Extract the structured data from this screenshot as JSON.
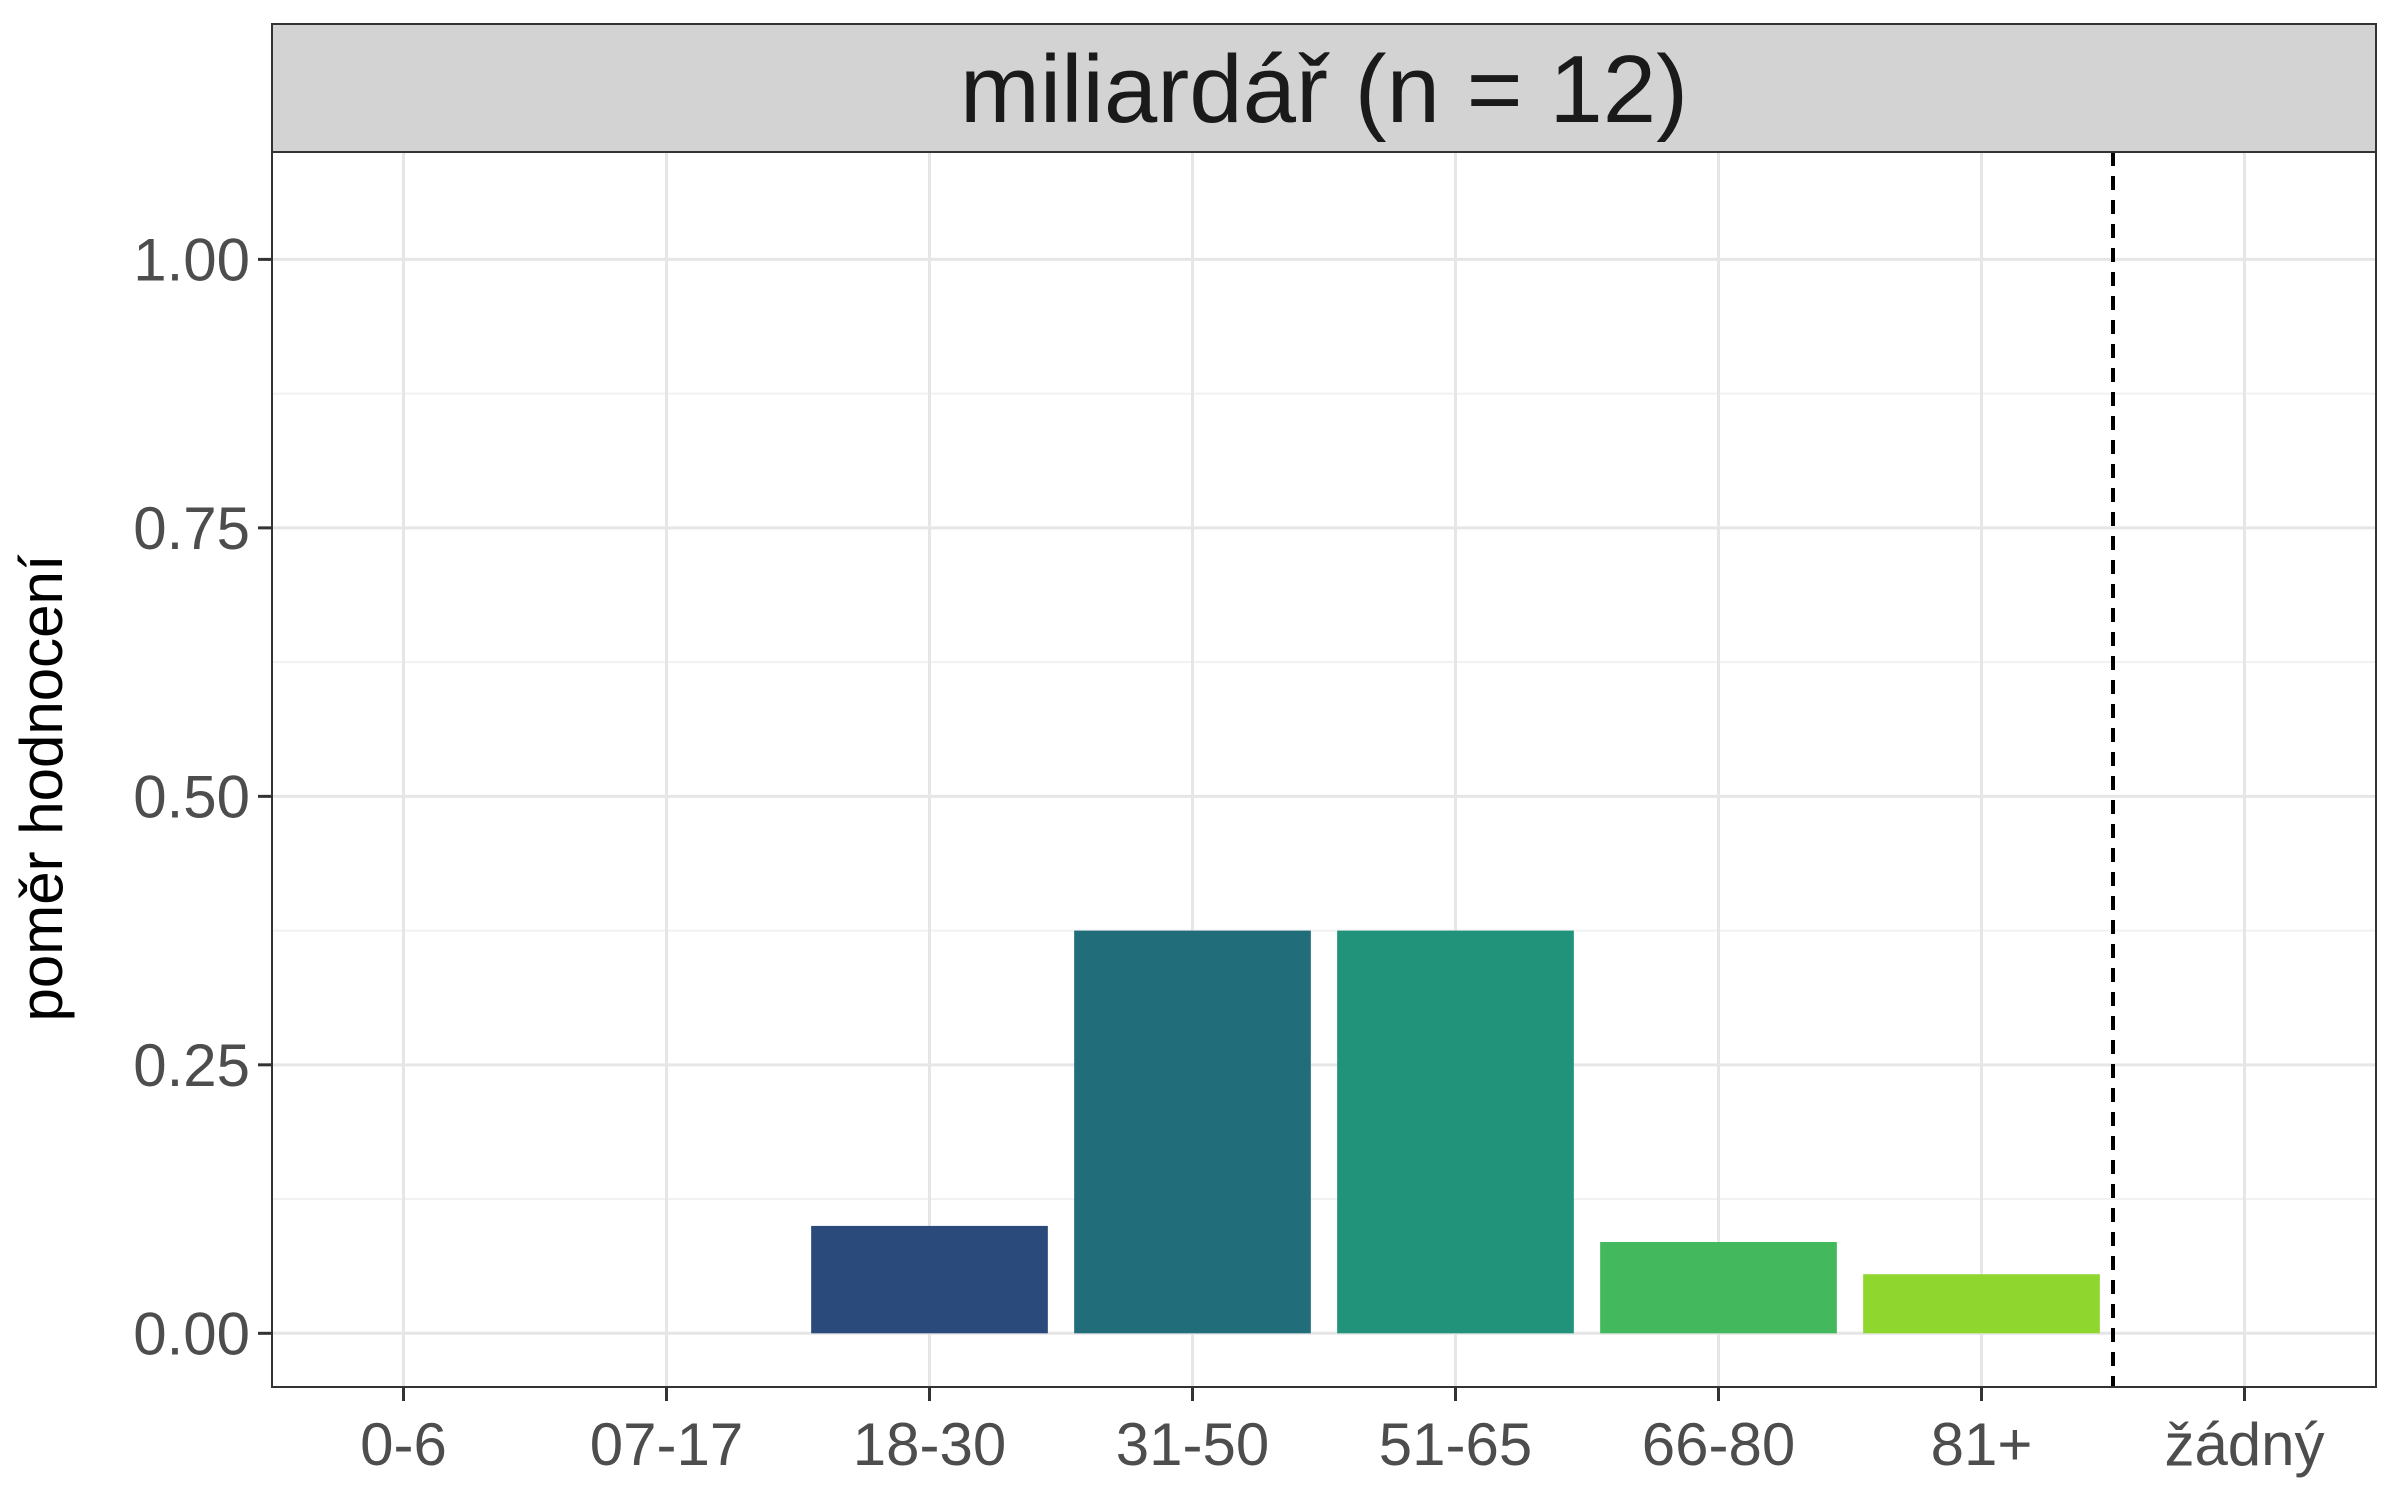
{
  "chart_data": {
    "type": "bar",
    "facet_title": "miliardář (n = 12)",
    "ylabel": "poměr hodnocení",
    "xlabel": "",
    "categories": [
      "0-6",
      "07-17",
      "18-30",
      "31-50",
      "51-65",
      "66-80",
      "81+",
      "žádný"
    ],
    "values": [
      0,
      0,
      0.1,
      0.375,
      0.375,
      0.085,
      0.055,
      0
    ],
    "bar_colors": [
      "#440154",
      "#46337e",
      "#2a4a7b",
      "#216e7a",
      "#21937a",
      "#43b85c",
      "#8fd62f",
      "#fde725"
    ],
    "ylim": [
      -0.05,
      1.1
    ],
    "yticks": [
      0,
      0.25,
      0.5,
      0.75,
      1.0
    ],
    "ytick_labels": [
      "0.00",
      "0.25",
      "0.50",
      "0.75",
      "1.00"
    ],
    "reference_line": {
      "style": "dashed",
      "between": [
        "81+",
        "žádný"
      ],
      "color": "#000000"
    },
    "grid": true,
    "theme": {
      "panel_border": "#333333",
      "strip_fill": "#d3d3d3",
      "grid_major": "#e6e6e6",
      "grid_minor": "#f1f1f1"
    }
  }
}
